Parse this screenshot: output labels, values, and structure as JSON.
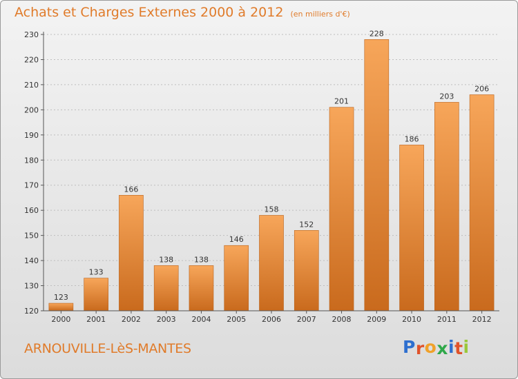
{
  "header": {
    "title": "Achats et Charges Externes 2000 à 2012",
    "subtitle": "(en milliers d'€)"
  },
  "footer": {
    "place": "ARNOUVILLE-LèS-MANTES",
    "logo_text": "Proxiti"
  },
  "colors": {
    "accent": "#e07b2a",
    "bar_top": "#f7a65a",
    "bar_bottom": "#c96a1d",
    "logo_letters": [
      "#2e6fcf",
      "#e0532b",
      "#f0a12a",
      "#2fa84a",
      "#2e6fcf",
      "#e0532b",
      "#9ac83a"
    ]
  },
  "chart_data": {
    "type": "bar",
    "categories": [
      "2000",
      "2001",
      "2002",
      "2003",
      "2004",
      "2005",
      "2006",
      "2007",
      "2008",
      "2009",
      "2010",
      "2011",
      "2012"
    ],
    "values": [
      123,
      133,
      166,
      138,
      138,
      146,
      158,
      152,
      201,
      228,
      186,
      203,
      206
    ],
    "ylim": [
      120,
      230
    ],
    "yticks": [
      120,
      130,
      140,
      150,
      160,
      170,
      180,
      190,
      200,
      210,
      220,
      230
    ],
    "grid": true,
    "data_labels": true
  }
}
